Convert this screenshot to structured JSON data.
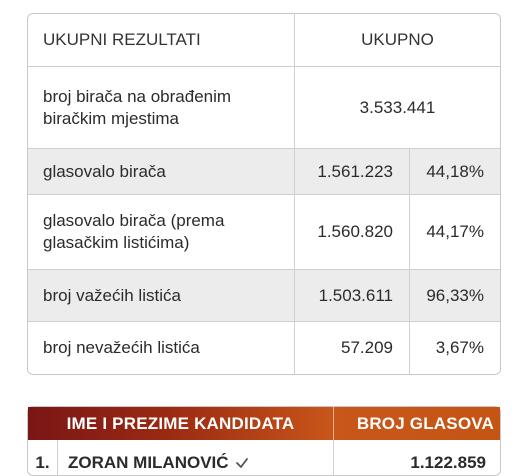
{
  "summary": {
    "header": {
      "label": "UKUPNI REZULTATI",
      "total": "UKUPNO"
    },
    "rows": [
      {
        "label": "broj birača na obrađenim biračkim mjestima",
        "value": "3.533.441",
        "percent": ""
      },
      {
        "label": "glasovalo birača",
        "value": "1.561.223",
        "percent": "44,18%"
      },
      {
        "label": "glasovalo birača (prema glasačkim listićima)",
        "value": "1.560.820",
        "percent": "44,17%"
      },
      {
        "label": "broj važećih listića",
        "value": "1.503.611",
        "percent": "96,33%"
      },
      {
        "label": "broj nevažećih listića",
        "value": "57.209",
        "percent": "3,67%"
      }
    ]
  },
  "candidates": {
    "header": {
      "name": "IME I PREZIME KANDIDATA",
      "votes": "BROJ GLASOVA"
    },
    "rows": [
      {
        "index": "1.",
        "name": "ZORAN MILANOVIĆ",
        "icon": "check-icon",
        "votes": "1.122.859"
      }
    ]
  }
}
